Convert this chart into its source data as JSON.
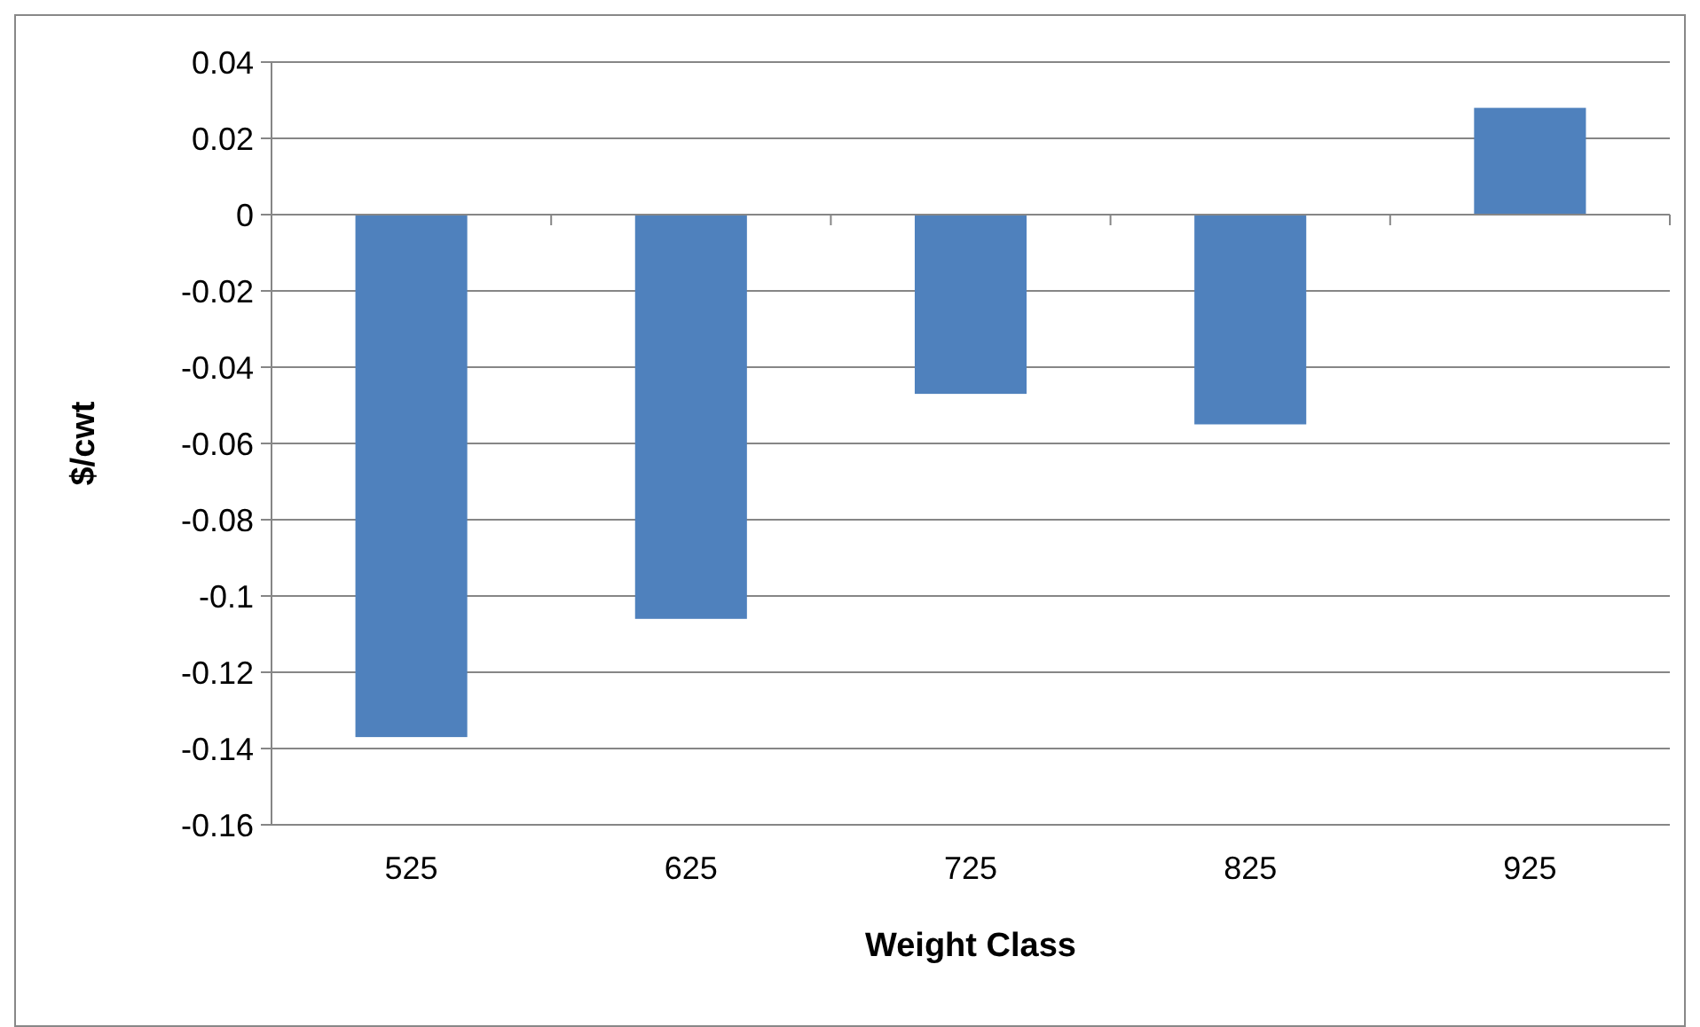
{
  "chart_data": {
    "type": "bar",
    "xlabel": "Weight Class",
    "ylabel": "$/cwt",
    "categories": [
      "525",
      "625",
      "725",
      "825",
      "925"
    ],
    "values": [
      -0.137,
      -0.106,
      -0.047,
      -0.055,
      0.028
    ],
    "color": "#4f81bd",
    "ylim": [
      -0.16,
      0.04
    ],
    "yticks": [
      -0.16,
      -0.14,
      -0.12,
      -0.1,
      -0.08,
      -0.06,
      -0.04,
      -0.02,
      0,
      0.02,
      0.04
    ],
    "grid": "y"
  }
}
